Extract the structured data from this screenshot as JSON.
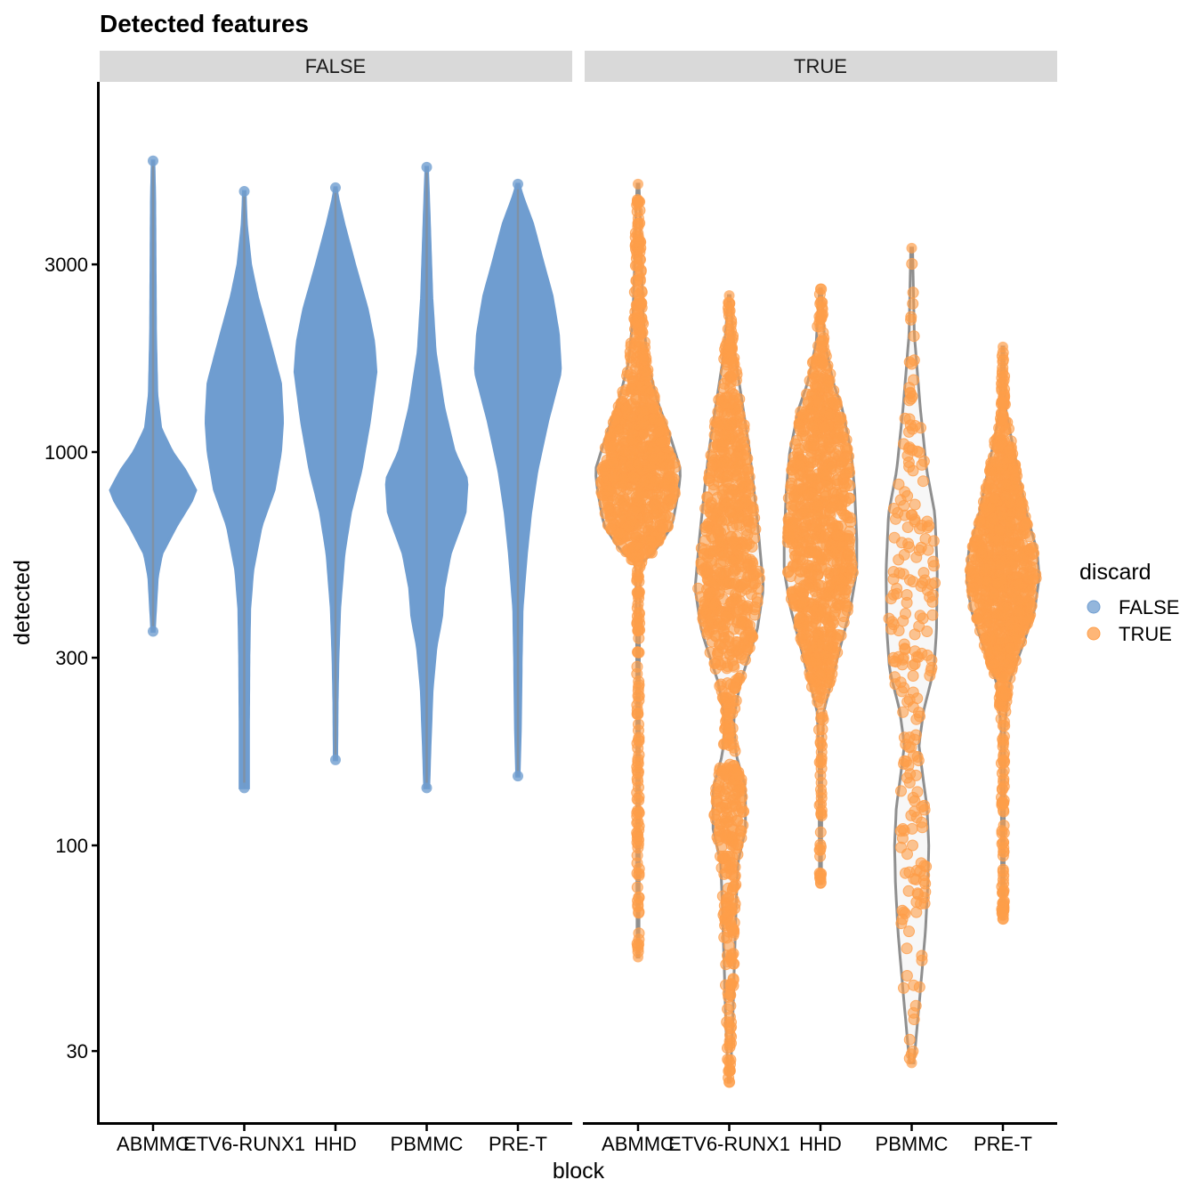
{
  "chart_data": {
    "type": "violin",
    "title": "Detected features",
    "xlabel": "block",
    "ylabel": "detected",
    "y_scale": "log10",
    "ylim": [
      22,
      6200
    ],
    "y_ticks": [
      30,
      100,
      300,
      1000,
      3000
    ],
    "y_tick_labels": [
      "30",
      "100",
      "300",
      "1000",
      "3000"
    ],
    "categories": [
      "ABMMC",
      "ETV6-RUNX1",
      "HHD",
      "PBMMC",
      "PRE-T"
    ],
    "facets": [
      {
        "label": "FALSE",
        "color": "#6f9dd0",
        "groups": [
          {
            "category": "ABMMC",
            "min": 350,
            "max": 5500,
            "median": 780,
            "profile": [
              [
                350,
                0.03
              ],
              [
                400,
                0.06
              ],
              [
                480,
                0.1
              ],
              [
                550,
                0.2
              ],
              [
                650,
                0.55
              ],
              [
                750,
                0.9
              ],
              [
                800,
                1.0
              ],
              [
                900,
                0.75
              ],
              [
                1000,
                0.45
              ],
              [
                1150,
                0.18
              ],
              [
                1400,
                0.09
              ],
              [
                2000,
                0.06
              ],
              [
                3000,
                0.05
              ],
              [
                4500,
                0.04
              ],
              [
                5500,
                0.02
              ]
            ]
          },
          {
            "category": "ETV6-RUNX1",
            "min": 140,
            "max": 4600,
            "median": 1150,
            "profile": [
              [
                140,
                0.1
              ],
              [
                200,
                0.1
              ],
              [
                300,
                0.11
              ],
              [
                400,
                0.13
              ],
              [
                500,
                0.2
              ],
              [
                650,
                0.4
              ],
              [
                800,
                0.7
              ],
              [
                1000,
                0.85
              ],
              [
                1200,
                0.9
              ],
              [
                1500,
                0.85
              ],
              [
                1900,
                0.6
              ],
              [
                2500,
                0.3
              ],
              [
                3000,
                0.15
              ],
              [
                3800,
                0.05
              ],
              [
                4600,
                0.02
              ]
            ]
          },
          {
            "category": "HHD",
            "min": 165,
            "max": 4700,
            "median": 1750,
            "profile": [
              [
                165,
                0.03
              ],
              [
                230,
                0.04
              ],
              [
                300,
                0.06
              ],
              [
                400,
                0.1
              ],
              [
                550,
                0.2
              ],
              [
                700,
                0.35
              ],
              [
                900,
                0.6
              ],
              [
                1200,
                0.8
              ],
              [
                1600,
                0.95
              ],
              [
                1900,
                0.9
              ],
              [
                2300,
                0.75
              ],
              [
                3000,
                0.45
              ],
              [
                3800,
                0.2
              ],
              [
                4400,
                0.06
              ],
              [
                4700,
                0.02
              ]
            ]
          },
          {
            "category": "PBMMC",
            "min": 140,
            "max": 5300,
            "median": 700,
            "profile": [
              [
                140,
                0.05
              ],
              [
                180,
                0.08
              ],
              [
                250,
                0.13
              ],
              [
                320,
                0.22
              ],
              [
                380,
                0.35
              ],
              [
                450,
                0.4
              ],
              [
                550,
                0.55
              ],
              [
                700,
                0.9
              ],
              [
                850,
                0.95
              ],
              [
                1000,
                0.65
              ],
              [
                1300,
                0.4
              ],
              [
                1800,
                0.2
              ],
              [
                2500,
                0.12
              ],
              [
                4000,
                0.06
              ],
              [
                5300,
                0.02
              ]
            ]
          },
          {
            "category": "PRE-T",
            "min": 150,
            "max": 4800,
            "median": 1650,
            "profile": [
              [
                150,
                0.03
              ],
              [
                200,
                0.06
              ],
              [
                300,
                0.08
              ],
              [
                400,
                0.1
              ],
              [
                550,
                0.2
              ],
              [
                700,
                0.3
              ],
              [
                900,
                0.45
              ],
              [
                1200,
                0.7
              ],
              [
                1600,
                1.0
              ],
              [
                2000,
                0.95
              ],
              [
                2500,
                0.8
              ],
              [
                3000,
                0.6
              ],
              [
                3800,
                0.35
              ],
              [
                4500,
                0.1
              ],
              [
                4800,
                0.03
              ]
            ]
          }
        ]
      },
      {
        "label": "TRUE",
        "color": "#fe9e4a",
        "groups": [
          {
            "category": "ABMMC",
            "min": 52,
            "max": 4800,
            "median": 850,
            "profile": [
              [
                52,
                0.02
              ],
              [
                100,
                0.03
              ],
              [
                300,
                0.03
              ],
              [
                520,
                0.05
              ],
              [
                560,
                0.4
              ],
              [
                650,
                0.8
              ],
              [
                800,
                0.95
              ],
              [
                900,
                1.0
              ],
              [
                1100,
                0.75
              ],
              [
                1350,
                0.45
              ],
              [
                1700,
                0.22
              ],
              [
                2200,
                0.12
              ],
              [
                3000,
                0.08
              ],
              [
                4000,
                0.05
              ],
              [
                4800,
                0.02
              ]
            ]
          },
          {
            "category": "ETV6-RUNX1",
            "min": 25,
            "max": 2500,
            "median": 450,
            "profile": [
              [
                25,
                0.02
              ],
              [
                35,
                0.08
              ],
              [
                50,
                0.12
              ],
              [
                70,
                0.16
              ],
              [
                90,
                0.2
              ],
              [
                110,
                0.38
              ],
              [
                140,
                0.38
              ],
              [
                170,
                0.16
              ],
              [
                210,
                0.1
              ],
              [
                260,
                0.26
              ],
              [
                350,
                0.65
              ],
              [
                450,
                0.8
              ],
              [
                600,
                0.7
              ],
              [
                800,
                0.58
              ],
              [
                1000,
                0.48
              ],
              [
                1300,
                0.32
              ],
              [
                1800,
                0.12
              ],
              [
                2500,
                0.02
              ]
            ]
          },
          {
            "category": "HHD",
            "min": 80,
            "max": 2600,
            "median": 600,
            "profile": [
              [
                80,
                0.02
              ],
              [
                120,
                0.03
              ],
              [
                170,
                0.03
              ],
              [
                220,
                0.08
              ],
              [
                300,
                0.4
              ],
              [
                400,
                0.7
              ],
              [
                500,
                0.85
              ],
              [
                600,
                0.85
              ],
              [
                800,
                0.8
              ],
              [
                1000,
                0.72
              ],
              [
                1300,
                0.5
              ],
              [
                1500,
                0.3
              ],
              [
                1900,
                0.1
              ],
              [
                2600,
                0.02
              ]
            ]
          },
          {
            "category": "PBMMC",
            "min": 28,
            "max": 3300,
            "median": 280,
            "profile": [
              [
                28,
                0.05
              ],
              [
                40,
                0.18
              ],
              [
                60,
                0.32
              ],
              [
                80,
                0.38
              ],
              [
                100,
                0.4
              ],
              [
                125,
                0.36
              ],
              [
                150,
                0.26
              ],
              [
                180,
                0.17
              ],
              [
                220,
                0.28
              ],
              [
                280,
                0.52
              ],
              [
                350,
                0.58
              ],
              [
                500,
                0.6
              ],
              [
                700,
                0.54
              ],
              [
                900,
                0.35
              ],
              [
                1300,
                0.2
              ],
              [
                2000,
                0.06
              ],
              [
                3300,
                0.02
              ]
            ]
          },
          {
            "category": "PRE-T",
            "min": 65,
            "max": 1850,
            "median": 480,
            "profile": [
              [
                65,
                0.03
              ],
              [
                100,
                0.03
              ],
              [
                200,
                0.04
              ],
              [
                260,
                0.15
              ],
              [
                330,
                0.5
              ],
              [
                400,
                0.75
              ],
              [
                480,
                0.85
              ],
              [
                560,
                0.8
              ],
              [
                700,
                0.55
              ],
              [
                900,
                0.35
              ],
              [
                1150,
                0.15
              ],
              [
                1300,
                0.06
              ],
              [
                1500,
                0.04
              ],
              [
                1850,
                0.02
              ]
            ]
          }
        ]
      }
    ],
    "legend": {
      "title": "discard",
      "position": "right",
      "items": [
        {
          "label": "FALSE",
          "color": "#6f9dd0"
        },
        {
          "label": "TRUE",
          "color": "#fe9e4a"
        }
      ]
    }
  }
}
